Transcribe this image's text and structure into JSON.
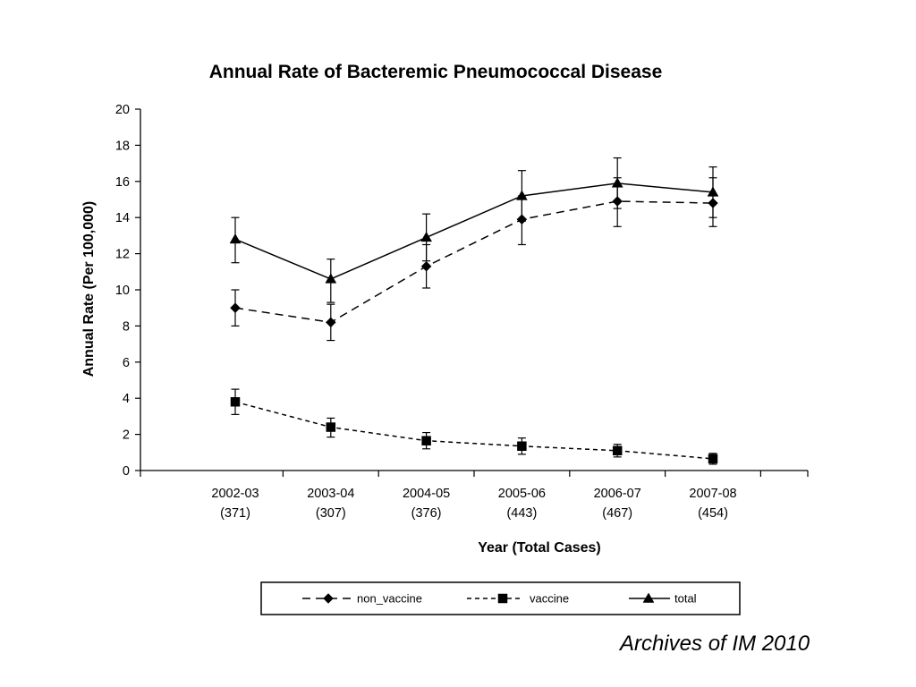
{
  "chart_data": {
    "type": "line",
    "title": "Annual Rate of Bacteremic Pneumococcal Disease",
    "xlabel": "Year (Total Cases)",
    "ylabel": "Annual Rate (Per 100,000)",
    "ylim": [
      0,
      20
    ],
    "yticks": [
      "0",
      "2",
      "4",
      "6",
      "8",
      "10",
      "12",
      "14",
      "16",
      "18",
      "20"
    ],
    "categories": [
      "2002-03",
      "2003-04",
      "2004-05",
      "2005-06",
      "2006-07",
      "2007-08"
    ],
    "category_cases": [
      "(371)",
      "(307)",
      "(376)",
      "(443)",
      "(467)",
      "(454)"
    ],
    "grid": false,
    "legend_position": "bottom",
    "series": [
      {
        "name": "non_vaccine",
        "line_style": "long-dash",
        "marker": "diamond",
        "values": [
          9.0,
          8.2,
          11.3,
          13.9,
          14.9,
          14.8
        ],
        "error_low": [
          8.0,
          7.2,
          10.1,
          12.5,
          13.5,
          13.5
        ],
        "error_high": [
          10.0,
          9.2,
          12.5,
          15.2,
          16.2,
          16.2
        ]
      },
      {
        "name": "vaccine",
        "line_style": "short-dash",
        "marker": "square",
        "values": [
          3.8,
          2.4,
          1.65,
          1.35,
          1.1,
          0.65
        ],
        "error_low": [
          3.1,
          1.85,
          1.2,
          0.9,
          0.75,
          0.35
        ],
        "error_high": [
          4.5,
          2.9,
          2.1,
          1.8,
          1.45,
          0.95
        ]
      },
      {
        "name": "total",
        "line_style": "solid",
        "marker": "triangle",
        "values": [
          12.8,
          10.6,
          12.9,
          15.2,
          15.9,
          15.4
        ],
        "error_low": [
          11.5,
          9.3,
          11.6,
          13.8,
          14.5,
          14.0
        ],
        "error_high": [
          14.0,
          11.7,
          14.2,
          16.6,
          17.3,
          16.8
        ]
      }
    ]
  },
  "citation": "Archives of IM 2010"
}
